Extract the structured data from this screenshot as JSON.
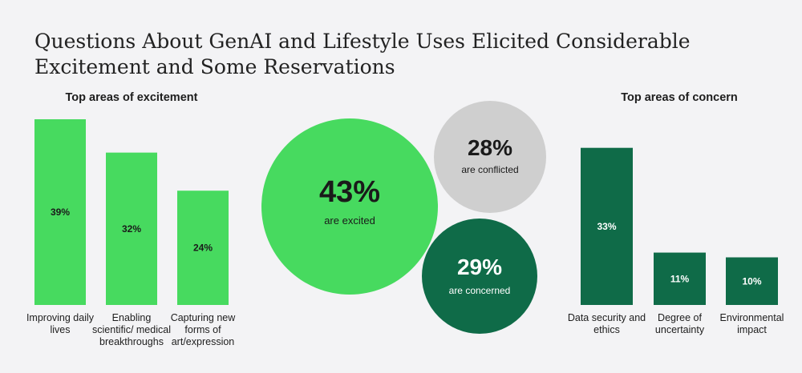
{
  "title": "Questions About GenAI and Lifestyle Uses Elicited Considerable Excitement and Some Reservations",
  "colors": {
    "excitement": "#47da5f",
    "concern": "#0f6b48",
    "conflicted": "#cfcfcf",
    "background": "#f3f3f5"
  },
  "chart_data": [
    {
      "type": "bar",
      "title": "Top areas of excitement",
      "categories": [
        "Improving daily lives",
        "Enabling scientific/ medical breakthroughs",
        "Capturing new forms of art/expression"
      ],
      "values": [
        39,
        32,
        24
      ],
      "value_labels": [
        "39%",
        "32%",
        "24%"
      ],
      "xlabel": "",
      "ylabel": "",
      "ylim": [
        0,
        39
      ],
      "grid": false
    },
    {
      "type": "bubble",
      "items": [
        {
          "value": 43,
          "pct": "43%",
          "label": "are excited",
          "color": "#47da5f"
        },
        {
          "value": 28,
          "pct": "28%",
          "label": "are conflicted",
          "color": "#cfcfcf"
        },
        {
          "value": 29,
          "pct": "29%",
          "label": "are concerned",
          "color": "#0f6b48"
        }
      ]
    },
    {
      "type": "bar",
      "title": "Top areas of concern",
      "categories": [
        "Data security and ethics",
        "Degree of uncertainty",
        "Environmental impact"
      ],
      "values": [
        33,
        11,
        10
      ],
      "value_labels": [
        "33%",
        "11%",
        "10%"
      ],
      "xlabel": "",
      "ylabel": "",
      "ylim": [
        0,
        39
      ],
      "grid": false
    }
  ]
}
